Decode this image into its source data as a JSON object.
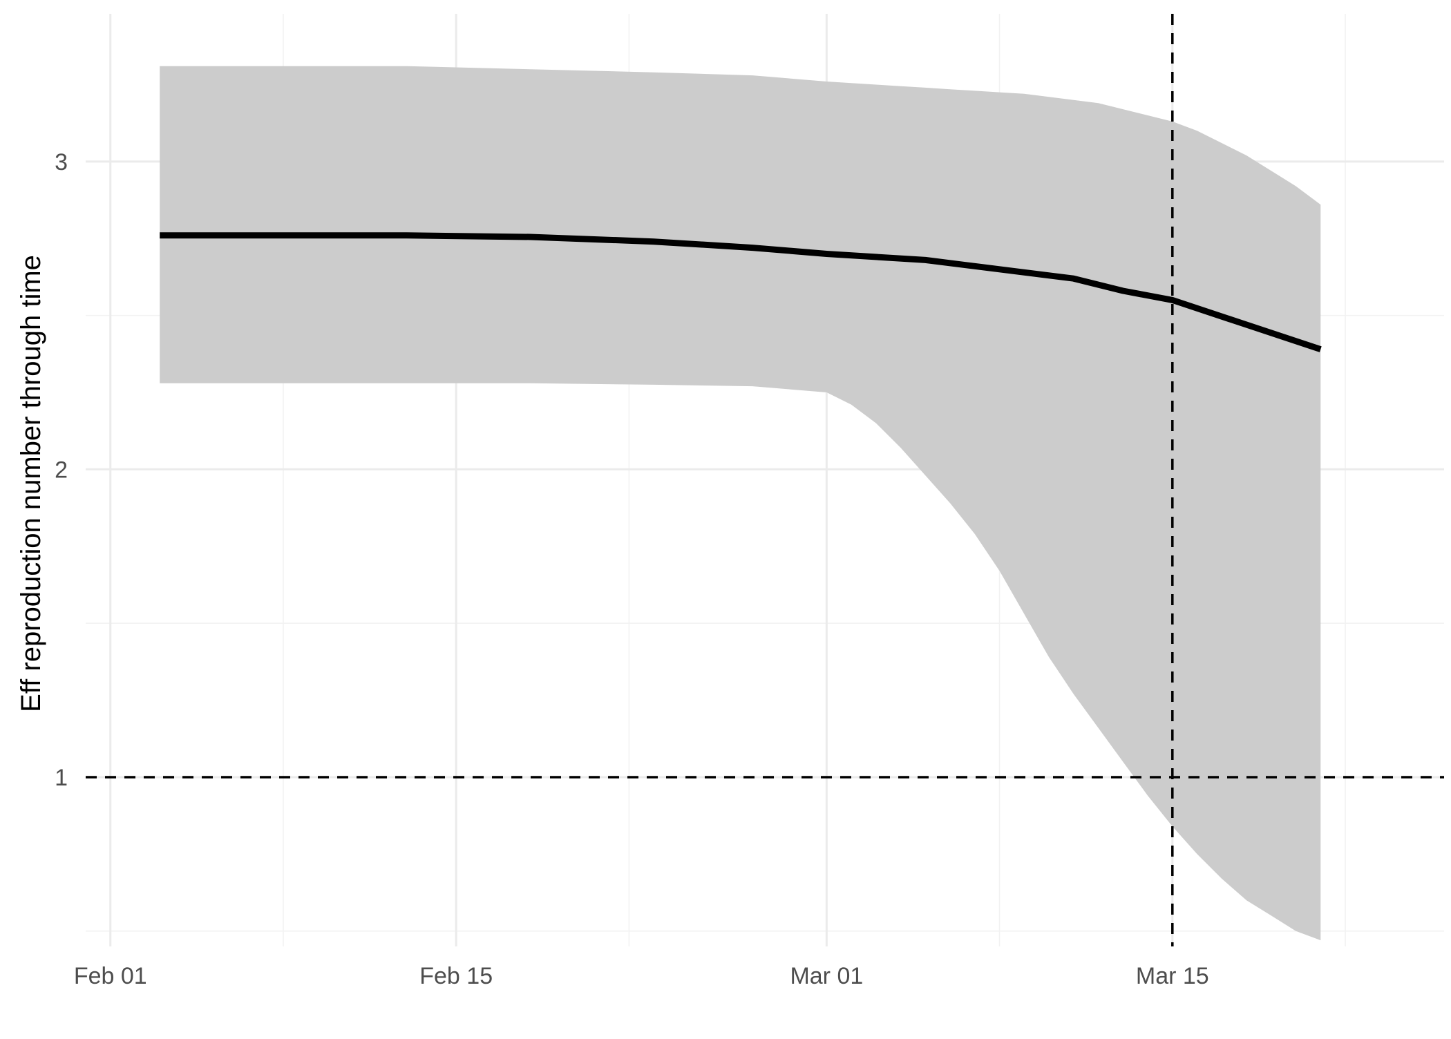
{
  "chart_data": {
    "type": "area",
    "title": "",
    "xlabel": "",
    "ylabel": "Eff reproduction number through time",
    "x_axis": {
      "scale": "date",
      "range": [
        "2020-01-31",
        "2020-03-26"
      ],
      "ticks": [
        "2020-02-01",
        "2020-02-15",
        "2020-03-01",
        "2020-03-15"
      ],
      "tick_labels": [
        "Feb 01",
        "Feb 15",
        "Mar 01",
        "Mar 15"
      ],
      "minor_ticks": [
        "2020-02-08",
        "2020-02-22",
        "2020-03-08",
        "2020-03-22"
      ]
    },
    "y_axis": {
      "range": [
        0.45,
        3.48
      ],
      "ticks": [
        1,
        2,
        3
      ],
      "tick_labels": [
        "1",
        "2",
        "3"
      ],
      "minor_ticks": [
        0.5,
        1.5,
        2.5
      ]
    },
    "grid": true,
    "legend": "none",
    "colors": {
      "line": "#000000",
      "ribbon": "#cccccc",
      "grid": "#ebebeb"
    },
    "series": [
      {
        "type": "line",
        "x": [
          "2020-02-03",
          "2020-02-08",
          "2020-02-13",
          "2020-02-18",
          "2020-02-23",
          "2020-02-27",
          "2020-03-01",
          "2020-03-05",
          "2020-03-08",
          "2020-03-11",
          "2020-03-13",
          "2020-03-15",
          "2020-03-18",
          "2020-03-21"
        ],
        "y": [
          2.76,
          2.76,
          2.76,
          2.755,
          2.74,
          2.72,
          2.7,
          2.68,
          2.65,
          2.62,
          2.58,
          2.55,
          2.47,
          2.39
        ]
      },
      {
        "type": "ribbon",
        "x": [
          "2020-02-03",
          "2020-02-08",
          "2020-02-13",
          "2020-02-18",
          "2020-02-23",
          "2020-02-27",
          "2020-03-01",
          "2020-03-02",
          "2020-03-03",
          "2020-03-04",
          "2020-03-05",
          "2020-03-06",
          "2020-03-07",
          "2020-03-08",
          "2020-03-09",
          "2020-03-10",
          "2020-03-11",
          "2020-03-12",
          "2020-03-13",
          "2020-03-14",
          "2020-03-15",
          "2020-03-16",
          "2020-03-17",
          "2020-03-18",
          "2020-03-19",
          "2020-03-20",
          "2020-03-21"
        ],
        "ymin": [
          2.28,
          2.28,
          2.28,
          2.28,
          2.275,
          2.27,
          2.25,
          2.21,
          2.15,
          2.07,
          1.98,
          1.89,
          1.79,
          1.67,
          1.53,
          1.39,
          1.27,
          1.16,
          1.05,
          0.94,
          0.84,
          0.75,
          0.67,
          0.6,
          0.55,
          0.5,
          0.47
        ],
        "ymax": [
          3.31,
          3.31,
          3.31,
          3.3,
          3.29,
          3.28,
          3.26,
          3.255,
          3.25,
          3.245,
          3.24,
          3.235,
          3.23,
          3.225,
          3.22,
          3.21,
          3.2,
          3.19,
          3.17,
          3.15,
          3.13,
          3.1,
          3.06,
          3.02,
          2.97,
          2.92,
          2.86
        ]
      }
    ],
    "reference_lines": [
      {
        "orientation": "horizontal",
        "y": 1,
        "style": "dashed"
      },
      {
        "orientation": "vertical",
        "x": "2020-03-15",
        "style": "dashed"
      }
    ]
  }
}
